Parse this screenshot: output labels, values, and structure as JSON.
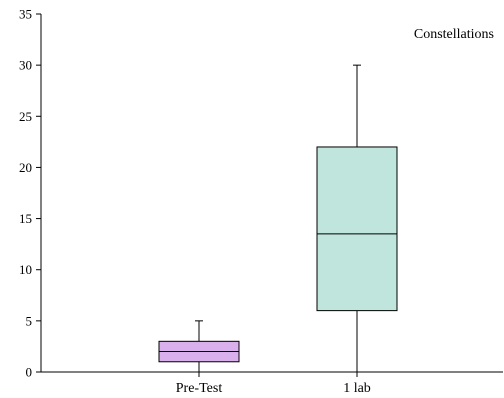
{
  "chart_data": {
    "type": "box",
    "title": "Constellations",
    "xlabel": "",
    "ylabel": "",
    "ylim": [
      0,
      35
    ],
    "yticks": [
      0,
      5,
      10,
      15,
      20,
      25,
      30,
      35
    ],
    "grid": false,
    "categories": [
      "Pre-Test",
      "1 lab"
    ],
    "boxes": [
      {
        "category": "Pre-Test",
        "min": 0,
        "q1": 1,
        "median": 2,
        "q3": 3,
        "max": 5,
        "color": "#dab0ec"
      },
      {
        "category": "1 lab",
        "min": 0,
        "q1": 6,
        "median": 13.5,
        "q3": 22,
        "max": 30,
        "color": "#bfe5dd"
      }
    ]
  }
}
